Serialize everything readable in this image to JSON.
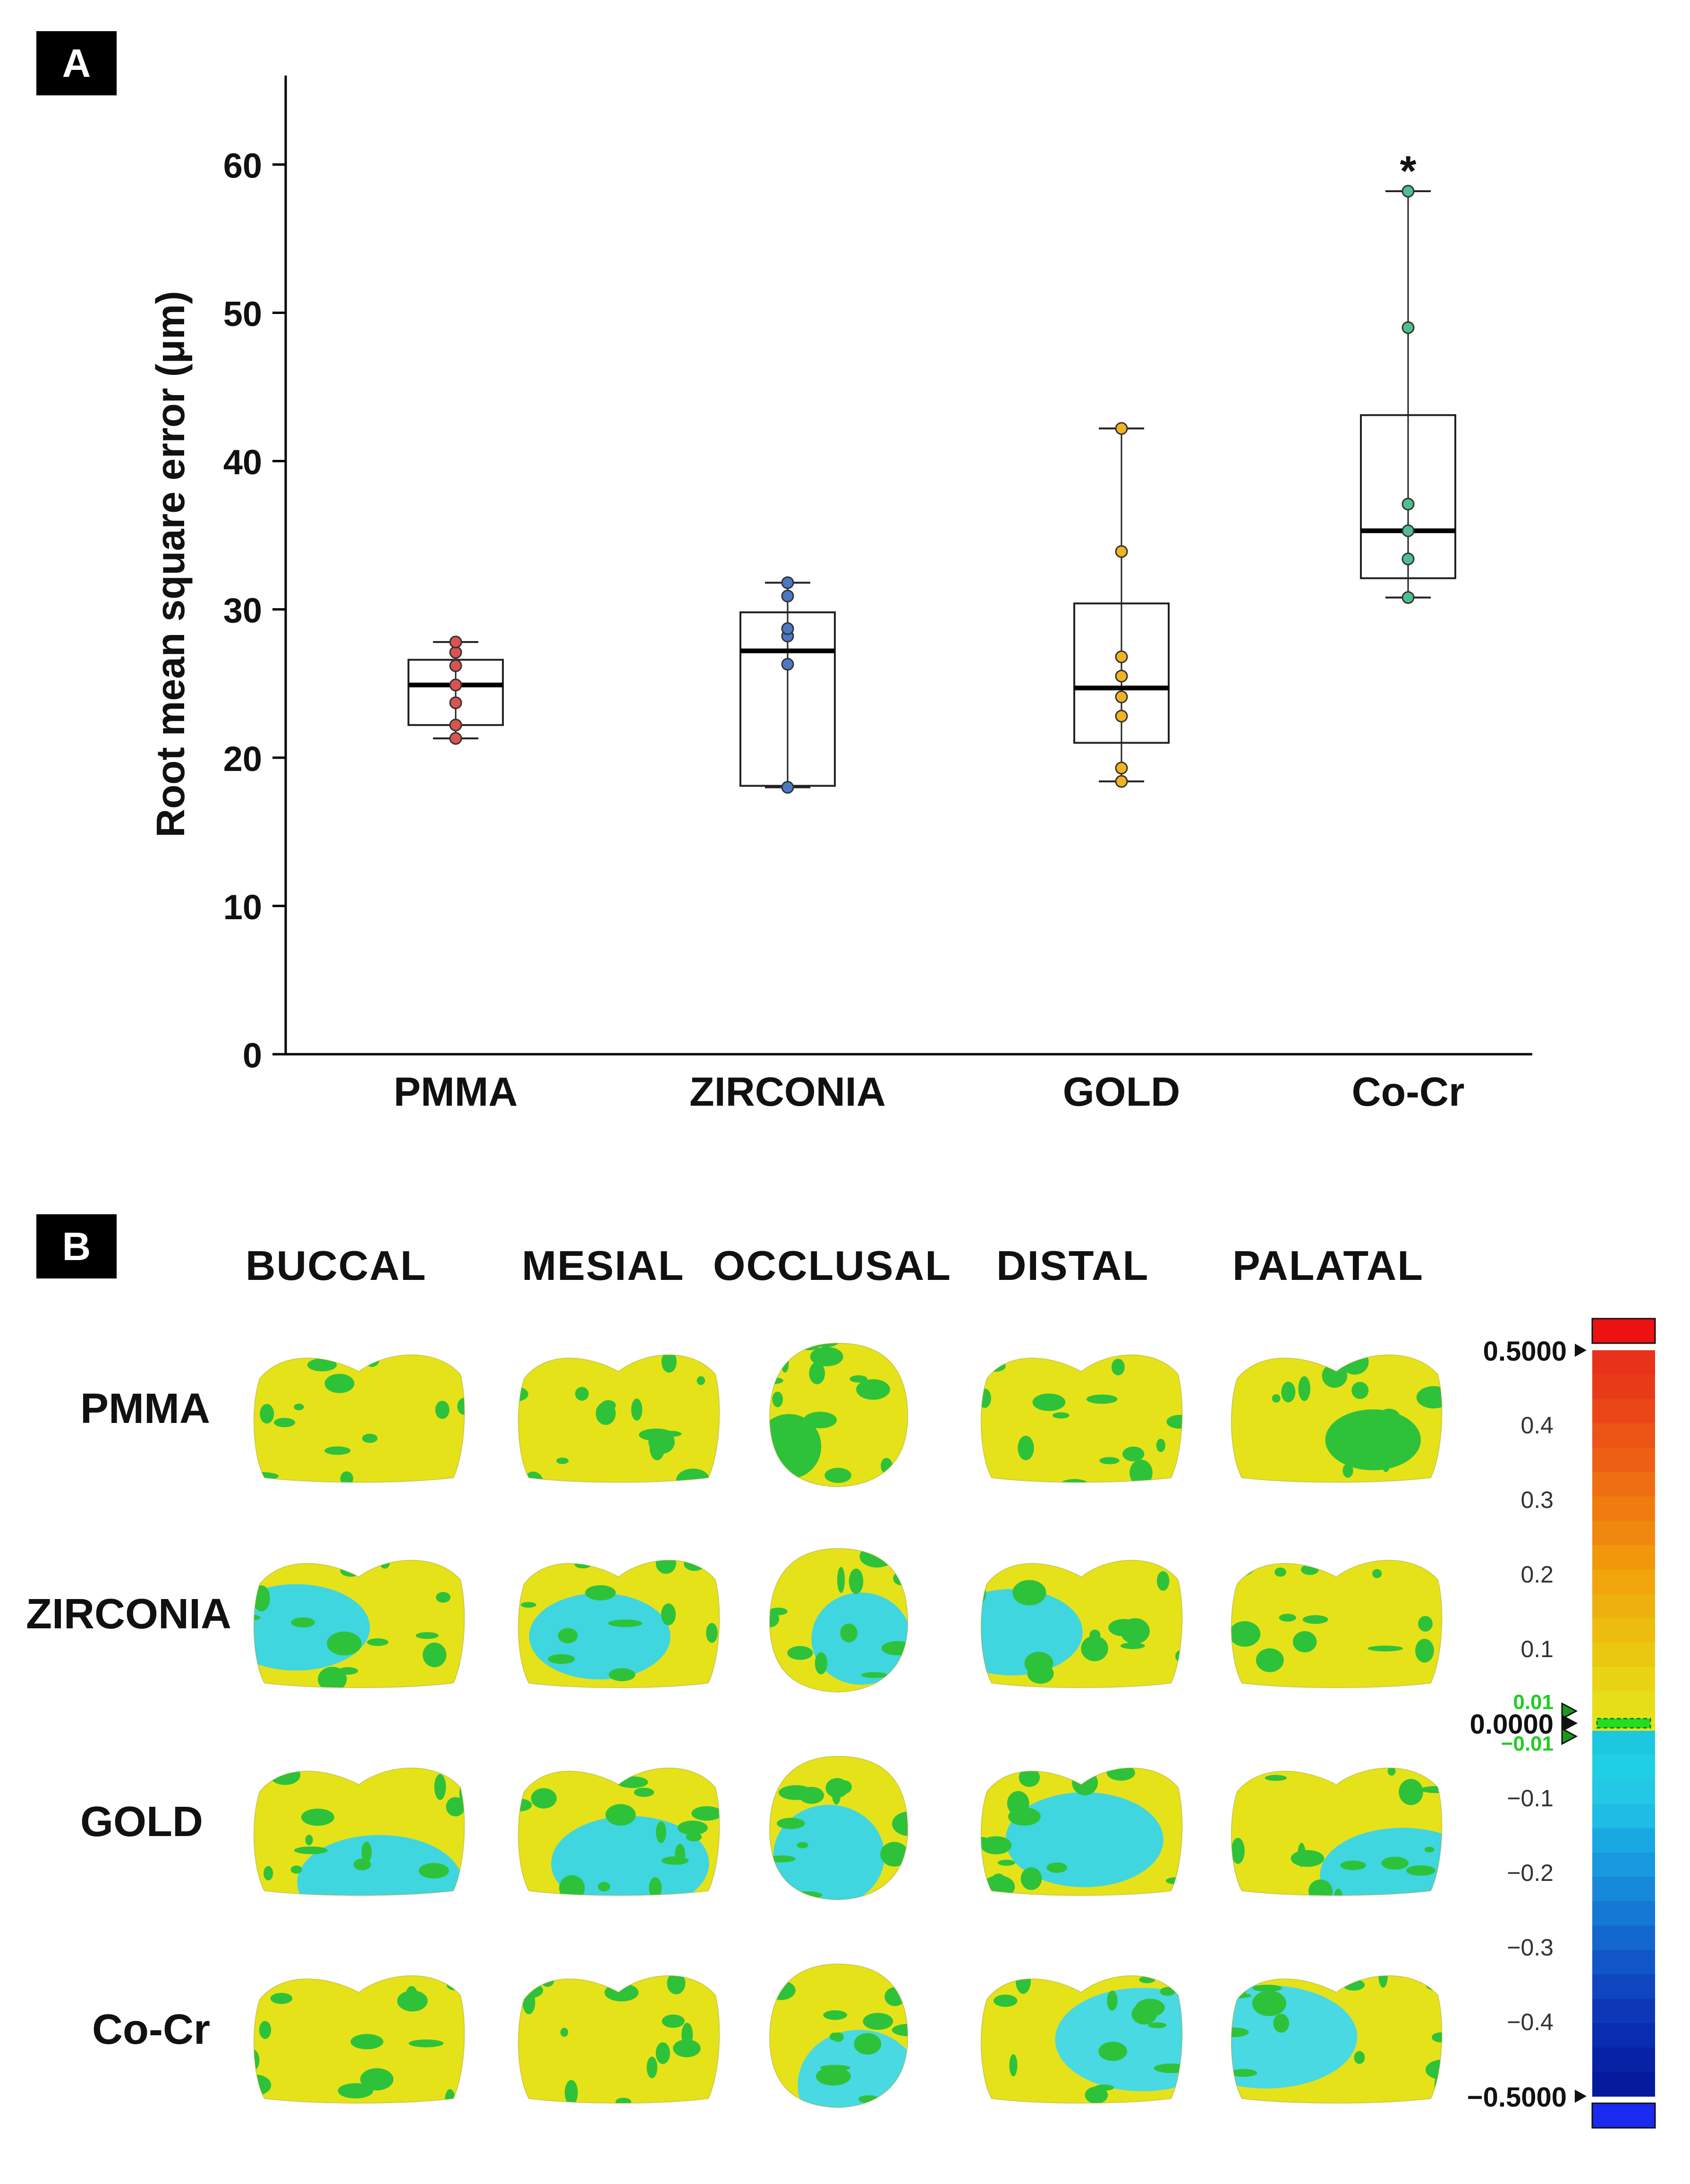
{
  "panel_a": {
    "tag": "A"
  },
  "panel_b": {
    "tag": "B",
    "views": [
      "BUCCAL",
      "MESIAL",
      "OCCLUSAL",
      "DISTAL",
      "PALATAL"
    ],
    "materials": [
      "PMMA",
      "ZIRCONIA",
      "GOLD",
      "Co-Cr"
    ],
    "colorbar": {
      "max_label": "0.5000",
      "min_label": "−0.5000",
      "zero_label": "0.0000",
      "tol_pos": "0.01",
      "tol_neg": "−0.01",
      "ticks": [
        "0.4",
        "0.3",
        "0.2",
        "0.1",
        "−0.1",
        "−0.2",
        "−0.3",
        "−0.4"
      ],
      "colors": {
        "over": "#ee1111",
        "under": "#1a2af0",
        "tolerance": "#22dd22",
        "tol_text": "#22cc22"
      }
    }
  },
  "chart_data": {
    "type": "box",
    "ylabel": "Root mean square error (μm)",
    "xlabel": "",
    "ylim": [
      0,
      66
    ],
    "yticks": [
      0,
      10,
      20,
      30,
      40,
      50,
      60
    ],
    "categories": [
      "PMMA",
      "ZIRCONIA",
      "GOLD",
      "Co-Cr"
    ],
    "boxes": [
      {
        "name": "PMMA",
        "whisker_low": 21.3,
        "q1": 22.2,
        "median": 24.9,
        "q3": 26.6,
        "whisker_high": 27.8,
        "points": [
          21.3,
          22.2,
          23.7,
          24.9,
          26.2,
          27.1,
          27.8
        ],
        "color": "#d9534f",
        "annotation": ""
      },
      {
        "name": "ZIRCONIA",
        "whisker_low": 18.0,
        "q1": 18.1,
        "median": 27.2,
        "q3": 29.8,
        "whisker_high": 31.8,
        "points": [
          18.0,
          26.3,
          28.2,
          28.7,
          30.9,
          31.8
        ],
        "color": "#4a78c4",
        "annotation": ""
      },
      {
        "name": "GOLD",
        "whisker_low": 18.4,
        "q1": 21.0,
        "median": 24.7,
        "q3": 30.4,
        "whisker_high": 42.2,
        "points": [
          18.4,
          19.3,
          22.8,
          24.1,
          25.5,
          26.8,
          33.9,
          42.2
        ],
        "color": "#f2b320",
        "annotation": ""
      },
      {
        "name": "Co-Cr",
        "whisker_low": 30.8,
        "q1": 32.1,
        "median": 35.3,
        "q3": 43.1,
        "whisker_high": 58.2,
        "points": [
          30.8,
          33.4,
          35.3,
          37.1,
          49.0,
          58.2
        ],
        "color": "#4fbf8f",
        "annotation": "*"
      }
    ]
  }
}
